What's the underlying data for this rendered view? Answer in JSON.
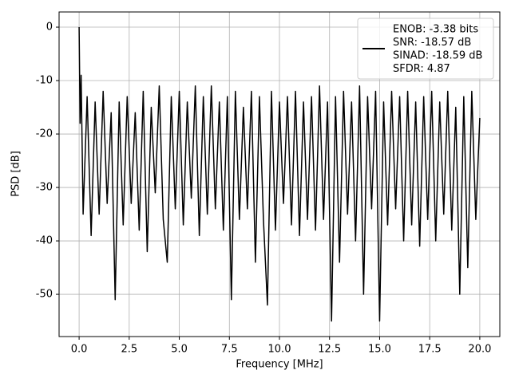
{
  "chart_data": {
    "type": "line",
    "xlabel": "Frequency [MHz]",
    "ylabel": "PSD [dB]",
    "xlim": [
      -1.0,
      21.0
    ],
    "ylim": [
      -57.9,
      2.84
    ],
    "xticks": [
      {
        "value": 0,
        "label": "0.0"
      },
      2.5,
      {
        "value": 5,
        "label": "5.0"
      },
      7.5,
      {
        "value": 10,
        "label": "10.0"
      },
      12.5,
      {
        "value": 15,
        "label": "15.0"
      },
      17.5,
      {
        "value": 20,
        "label": "20.0"
      }
    ],
    "yticks": [
      -50,
      -40,
      -30,
      -20,
      -10,
      0
    ],
    "grid": true,
    "legend": "upper right",
    "x": [
      0,
      0.05,
      0.1,
      0.2,
      0.4,
      0.6,
      0.8,
      1.0,
      1.2,
      1.4,
      1.6,
      1.8,
      2.0,
      2.2,
      2.4,
      2.6,
      2.8,
      3.0,
      3.2,
      3.4,
      3.6,
      3.8,
      4.0,
      4.2,
      4.4,
      4.6,
      4.8,
      5.0,
      5.2,
      5.4,
      5.6,
      5.8,
      6.0,
      6.2,
      6.4,
      6.6,
      6.8,
      7.0,
      7.2,
      7.4,
      7.6,
      7.8,
      8.0,
      8.2,
      8.4,
      8.6,
      8.8,
      9.0,
      9.2,
      9.4,
      9.6,
      9.8,
      10.0,
      10.2,
      10.4,
      10.6,
      10.8,
      11.0,
      11.2,
      11.4,
      11.6,
      11.8,
      12.0,
      12.2,
      12.4,
      12.6,
      12.8,
      13.0,
      13.2,
      13.4,
      13.6,
      13.8,
      14.0,
      14.2,
      14.4,
      14.6,
      14.8,
      15.0,
      15.2,
      15.4,
      15.6,
      15.8,
      16.0,
      16.2,
      16.4,
      16.6,
      16.8,
      17.0,
      17.2,
      17.4,
      17.6,
      17.8,
      18.0,
      18.2,
      18.4,
      18.6,
      18.8,
      19.0,
      19.2,
      19.4,
      19.6,
      19.8,
      20.0
    ],
    "series": [
      {
        "name": "ENOB: -3.38 bits\nSNR: -18.57 dB\nSINAD: -18.59 dB\nSFDR: 4.87",
        "color": "#000000",
        "values": [
          0,
          -18,
          -9,
          -35,
          -13,
          -39,
          -14,
          -35,
          -12,
          -33,
          -16,
          -51,
          -14,
          -37,
          -13,
          -33,
          -16,
          -38,
          -12,
          -42,
          -15,
          -31,
          -11,
          -36,
          -44,
          -13,
          -34,
          -12,
          -37,
          -14,
          -32,
          -11,
          -39,
          -13,
          -35,
          -11,
          -34,
          -14,
          -38,
          -13,
          -51,
          -12,
          -36,
          -15,
          -34,
          -12,
          -44,
          -13,
          -36,
          -52,
          -12,
          -38,
          -14,
          -33,
          -13,
          -37,
          -12,
          -39,
          -14,
          -36,
          -13,
          -38,
          -11,
          -36,
          -14,
          -55,
          -13,
          -44,
          -12,
          -35,
          -14,
          -40,
          -11,
          -50,
          -13,
          -34,
          -12,
          -55,
          -14,
          -37,
          -12,
          -34,
          -13,
          -40,
          -12,
          -37,
          -14,
          -41,
          -13,
          -36,
          -12,
          -40,
          -14,
          -35,
          -12,
          -38,
          -15,
          -50,
          -13,
          -45,
          -12,
          -36,
          -17
        ]
      }
    ]
  }
}
